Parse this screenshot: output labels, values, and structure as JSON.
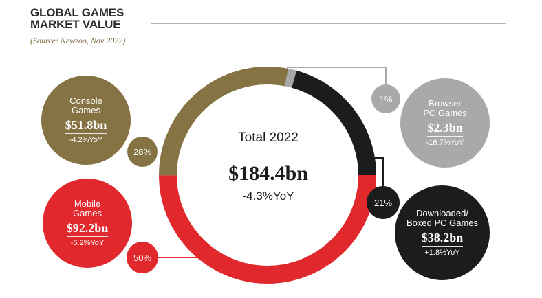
{
  "header": {
    "title_line1": "GLOBAL GAMES",
    "title_line2": "MARKET VALUE",
    "source": "(Source: Newzoo, Nov 2022)"
  },
  "center": {
    "label": "Total 2022",
    "total": "$184.4bn",
    "yoy": "-4.3%YoY"
  },
  "segments": [
    {
      "id": "console",
      "name_line1": "Console",
      "name_line2": "Games",
      "value": "$51.8bn",
      "yoy": "-4.2%YoY",
      "share_label": "28%",
      "color": "#857344"
    },
    {
      "id": "mobile",
      "name_line1": "Mobile",
      "name_line2": "Games",
      "value": "$92.2bn",
      "yoy": "-6.2%YoY",
      "share_label": "50%",
      "color": "#e1282d"
    },
    {
      "id": "boxed",
      "name_line1": "Downloaded/",
      "name_line2": "Boxed PC Games",
      "value": "$38.2bn",
      "yoy": "+1.8%YoY",
      "share_label": "21%",
      "color": "#1c1c1c"
    },
    {
      "id": "browser",
      "name_line1": "Browser",
      "name_line2": "PC Games",
      "value": "$2.3bn",
      "yoy": "-16.7%YoY",
      "share_label": "1%",
      "color": "#a9a9a9"
    }
  ],
  "chart_data": {
    "type": "pie",
    "title": "GLOBAL GAMES MARKET VALUE",
    "subtitle": "(Source: Newzoo, Nov 2022)",
    "total": 184.4,
    "unit": "bn USD",
    "categories": [
      "Mobile Games",
      "Downloaded/Boxed PC Games",
      "Browser PC Games",
      "Console Games"
    ],
    "values": [
      92.2,
      38.2,
      2.3,
      51.8
    ],
    "shares_percent": [
      50,
      21,
      1,
      28
    ],
    "yoy": [
      "-6.2%",
      "+1.8%",
      "-16.7%",
      "-4.2%"
    ],
    "colors": [
      "#e1282d",
      "#1c1c1c",
      "#a9a9a9",
      "#857344"
    ]
  }
}
